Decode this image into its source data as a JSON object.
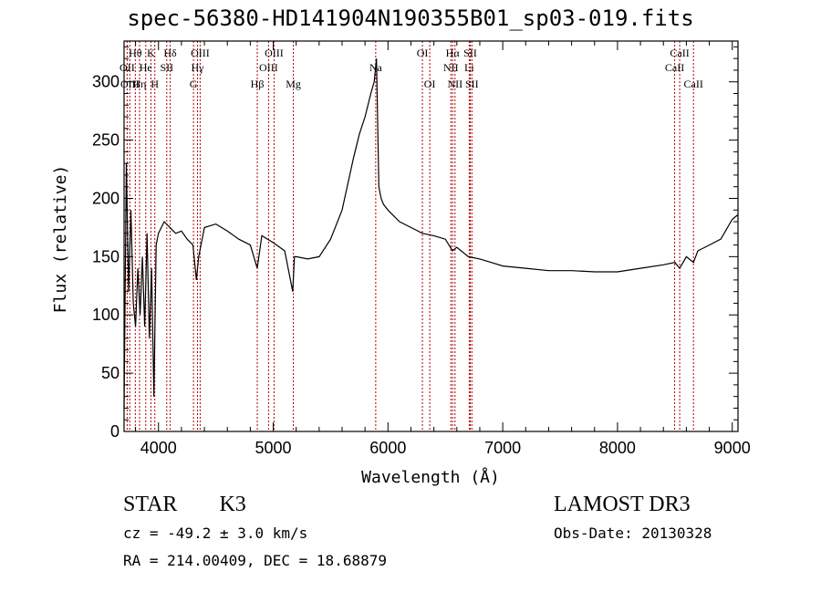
{
  "chart_data": {
    "type": "line",
    "title": "spec-56380-HD141904N190355B01_sp03-019.fits",
    "xlabel": "Wavelength (Å)",
    "ylabel": "Flux (relative)",
    "xlim": [
      3700,
      9050
    ],
    "ylim": [
      0,
      335
    ],
    "xticks": [
      4000,
      5000,
      6000,
      7000,
      8000,
      9000
    ],
    "yticks": [
      0,
      50,
      100,
      150,
      200,
      250,
      300
    ],
    "spectrum": {
      "name": "flux",
      "x": [
        3700,
        3720,
        3740,
        3760,
        3780,
        3800,
        3820,
        3840,
        3860,
        3880,
        3900,
        3920,
        3940,
        3960,
        3980,
        4000,
        4050,
        4100,
        4150,
        4200,
        4250,
        4300,
        4330,
        4350,
        4400,
        4500,
        4600,
        4700,
        4800,
        4861,
        4900,
        5000,
        5100,
        5170,
        5185,
        5200,
        5300,
        5400,
        5500,
        5600,
        5700,
        5750,
        5800,
        5850,
        5880,
        5900,
        5920,
        5940,
        5960,
        6000,
        6100,
        6200,
        6300,
        6400,
        6500,
        6563,
        6600,
        6700,
        6800,
        6900,
        7000,
        7200,
        7400,
        7600,
        7800,
        8000,
        8200,
        8400,
        8500,
        8542,
        8600,
        8662,
        8700,
        8800,
        8900,
        9000,
        9050
      ],
      "y": [
        20,
        230,
        120,
        190,
        110,
        90,
        140,
        100,
        150,
        90,
        170,
        80,
        140,
        30,
        160,
        170,
        180,
        175,
        170,
        172,
        165,
        160,
        130,
        150,
        175,
        178,
        172,
        165,
        160,
        140,
        168,
        162,
        155,
        120,
        150,
        150,
        148,
        150,
        165,
        190,
        235,
        255,
        270,
        290,
        300,
        320,
        210,
        200,
        195,
        190,
        180,
        175,
        170,
        168,
        165,
        155,
        158,
        150,
        148,
        145,
        142,
        140,
        138,
        138,
        137,
        137,
        140,
        143,
        145,
        140,
        150,
        145,
        155,
        160,
        165,
        182,
        186
      ]
    },
    "spectral_lines": [
      {
        "label": "Hθ",
        "wavelength": 3798,
        "row": 0
      },
      {
        "label": "OII",
        "wavelength": 3727,
        "row": 1
      },
      {
        "label": "OIII",
        "wavelength": 3750,
        "row": 2
      },
      {
        "label": "K",
        "wavelength": 3934,
        "row": 0
      },
      {
        "label": "He",
        "wavelength": 3889,
        "row": 1
      },
      {
        "label": "Hη",
        "wavelength": 3835,
        "row": 2
      },
      {
        "label": "Hδ",
        "wavelength": 4102,
        "row": 0
      },
      {
        "label": "SII",
        "wavelength": 4072,
        "row": 1
      },
      {
        "label": "H",
        "wavelength": 3968,
        "row": 2
      },
      {
        "label": "OIII",
        "wavelength": 4363,
        "row": 0
      },
      {
        "label": "Hγ",
        "wavelength": 4340,
        "row": 1
      },
      {
        "label": "G",
        "wavelength": 4305,
        "row": 2
      },
      {
        "label": "Hβ",
        "wavelength": 4861,
        "row": 2
      },
      {
        "label": "OIII",
        "wavelength": 5007,
        "row": 0
      },
      {
        "label": "OIII",
        "wavelength": 4959,
        "row": 1
      },
      {
        "label": "Mg",
        "wavelength": 5175,
        "row": 2
      },
      {
        "label": "Na",
        "wavelength": 5893,
        "row": 1
      },
      {
        "label": "OI",
        "wavelength": 6300,
        "row": 0
      },
      {
        "label": "OI",
        "wavelength": 6364,
        "row": 2
      },
      {
        "label": "Hα",
        "wavelength": 6563,
        "row": 0
      },
      {
        "label": "NII",
        "wavelength": 6548,
        "row": 1
      },
      {
        "label": "NII",
        "wavelength": 6584,
        "row": 2
      },
      {
        "label": "SII",
        "wavelength": 6717,
        "row": 0
      },
      {
        "label": "Li",
        "wavelength": 6708,
        "row": 1
      },
      {
        "label": "SII",
        "wavelength": 6731,
        "row": 2
      },
      {
        "label": "CaII",
        "wavelength": 8542,
        "row": 0
      },
      {
        "label": "CaII",
        "wavelength": 8498,
        "row": 1
      },
      {
        "label": "CaII",
        "wavelength": 8662,
        "row": 2
      }
    ],
    "line_color": "#b00000",
    "data_color": "#000000"
  },
  "info": {
    "object_class": "STAR",
    "subclass": "K3",
    "survey": "LAMOST DR3",
    "redshift_text": "cz = -49.2 ± 3.0 km/s",
    "obs_date": "Obs-Date: 20130328",
    "coords": "RA = 214.00409, DEC =  18.68879"
  }
}
